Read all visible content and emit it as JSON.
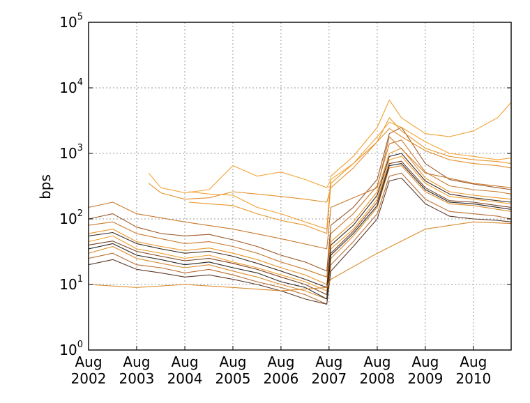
{
  "chart_data": {
    "type": "line",
    "title": "",
    "xlabel": "",
    "ylabel": "bps",
    "yscale": "log",
    "ylim": [
      1,
      100000
    ],
    "xlim": [
      "2002-08-01",
      "2011-05-15"
    ],
    "grid": true,
    "legend": "none",
    "yticks": [
      {
        "value": 1,
        "base": "10",
        "exp": "0"
      },
      {
        "value": 10,
        "base": "10",
        "exp": "1"
      },
      {
        "value": 100,
        "base": "10",
        "exp": "2"
      },
      {
        "value": 1000,
        "base": "10",
        "exp": "3"
      },
      {
        "value": 10000,
        "base": "10",
        "exp": "4"
      },
      {
        "value": 100000,
        "base": "10",
        "exp": "5"
      }
    ],
    "xticks": [
      {
        "date": "2002-08-01",
        "line1": "Aug",
        "line2": "2002"
      },
      {
        "date": "2003-08-01",
        "line1": "Aug",
        "line2": "2003"
      },
      {
        "date": "2004-08-01",
        "line1": "Aug",
        "line2": "2004"
      },
      {
        "date": "2005-08-01",
        "line1": "Aug",
        "line2": "2005"
      },
      {
        "date": "2006-08-01",
        "line1": "Aug",
        "line2": "2006"
      },
      {
        "date": "2007-08-01",
        "line1": "Aug",
        "line2": "2007"
      },
      {
        "date": "2008-08-01",
        "line1": "Aug",
        "line2": "2008"
      },
      {
        "date": "2009-08-01",
        "line1": "Aug",
        "line2": "2009"
      },
      {
        "date": "2010-08-01",
        "line1": "Aug",
        "line2": "2010"
      }
    ],
    "colors": [
      "#f0a030",
      "#e8962a",
      "#d98a2c",
      "#c97a2e",
      "#b86e32",
      "#9c5a2c",
      "#7a4424",
      "#5a3a2a",
      "#3a2c26",
      "#2a2624",
      "#f5a638",
      "#e2902e"
    ],
    "series": [
      {
        "x": [
          "2002-08-01",
          "2003-02-01",
          "2003-08-01",
          "2004-02-01",
          "2004-08-01",
          "2005-02-01",
          "2005-08-01",
          "2006-02-01",
          "2006-08-01",
          "2007-02-01",
          "2007-07-15",
          "2007-08-15",
          "2008-02-01",
          "2008-08-01",
          "2008-11-01",
          "2009-02-01",
          "2009-08-01",
          "2010-02-01",
          "2010-08-01",
          "2011-02-01",
          "2011-05-15"
        ],
        "y": [
          45,
          55,
          35,
          30,
          25,
          28,
          22,
          18,
          14,
          11,
          8,
          35,
          70,
          200,
          800,
          900,
          350,
          220,
          200,
          180,
          170
        ]
      },
      {
        "x": [
          "2002-08-01",
          "2003-02-01",
          "2003-08-01",
          "2004-02-01",
          "2004-08-01",
          "2005-02-01",
          "2005-08-01",
          "2006-02-01",
          "2006-08-01",
          "2007-02-01",
          "2007-07-15",
          "2007-08-15",
          "2008-02-01",
          "2008-08-01",
          "2008-11-01",
          "2009-02-01",
          "2009-08-01",
          "2010-02-01",
          "2010-08-01",
          "2011-02-01",
          "2011-05-15"
        ],
        "y": [
          60,
          70,
          45,
          38,
          33,
          36,
          30,
          24,
          18,
          14,
          10,
          45,
          90,
          260,
          1000,
          1200,
          420,
          260,
          230,
          210,
          200
        ]
      },
      {
        "x": [
          "2002-08-01",
          "2003-02-01",
          "2003-08-01",
          "2004-02-01",
          "2004-08-01",
          "2005-02-01",
          "2005-08-01",
          "2006-02-01",
          "2006-08-01",
          "2007-02-01",
          "2007-07-15",
          "2007-08-15",
          "2008-02-01",
          "2008-08-01",
          "2008-11-01",
          "2009-02-01",
          "2009-08-01",
          "2010-02-01",
          "2010-08-01",
          "2011-02-01",
          "2011-05-15"
        ],
        "y": [
          30,
          38,
          25,
          21,
          18,
          20,
          16,
          13,
          10,
          8,
          6,
          25,
          55,
          150,
          600,
          650,
          260,
          170,
          160,
          140,
          130
        ]
      },
      {
        "x": [
          "2002-08-01",
          "2003-02-01",
          "2003-08-01",
          "2004-02-01",
          "2004-08-01",
          "2005-02-01",
          "2005-08-01",
          "2006-02-01",
          "2006-08-01",
          "2007-02-01",
          "2007-07-15",
          "2007-08-15",
          "2008-02-01",
          "2008-08-01",
          "2008-11-01",
          "2009-02-01",
          "2009-08-01",
          "2010-02-01",
          "2010-08-01",
          "2011-02-01",
          "2011-05-15"
        ],
        "y": [
          80,
          90,
          60,
          50,
          42,
          45,
          38,
          30,
          22,
          17,
          13,
          60,
          120,
          320,
          1400,
          1600,
          520,
          320,
          280,
          260,
          240
        ]
      },
      {
        "x": [
          "2002-08-01",
          "2003-02-01",
          "2003-08-01",
          "2004-02-01",
          "2004-08-01",
          "2005-02-01",
          "2005-08-01",
          "2006-02-01",
          "2006-08-01",
          "2007-02-01",
          "2007-07-15",
          "2007-08-15",
          "2008-02-01",
          "2008-08-01",
          "2008-11-01",
          "2009-02-01",
          "2009-08-01",
          "2010-02-01",
          "2010-08-01",
          "2011-02-01",
          "2011-05-15"
        ],
        "y": [
          25,
          30,
          20,
          18,
          15,
          17,
          14,
          11,
          9,
          7,
          5,
          20,
          45,
          120,
          450,
          500,
          200,
          130,
          120,
          110,
          100
        ]
      },
      {
        "x": [
          "2002-08-01",
          "2003-02-01",
          "2003-08-01",
          "2004-02-01",
          "2004-08-01",
          "2005-02-01",
          "2005-08-01",
          "2006-02-01",
          "2006-08-01",
          "2007-02-01",
          "2007-07-15",
          "2007-08-15",
          "2008-02-01",
          "2008-08-01",
          "2008-11-01",
          "2009-02-01",
          "2009-08-01",
          "2010-02-01",
          "2010-08-01",
          "2011-02-01",
          "2011-05-15"
        ],
        "y": [
          100,
          120,
          75,
          60,
          55,
          58,
          48,
          38,
          28,
          22,
          16,
          80,
          150,
          400,
          2000,
          2500,
          700,
          400,
          340,
          300,
          280
        ]
      },
      {
        "x": [
          "2002-08-01",
          "2003-02-01",
          "2003-08-01",
          "2004-02-01",
          "2004-08-01",
          "2005-02-01",
          "2005-08-01",
          "2006-02-01",
          "2006-08-01",
          "2007-02-01",
          "2007-07-15",
          "2007-08-15",
          "2008-02-01",
          "2008-08-01",
          "2008-11-01",
          "2009-02-01",
          "2009-08-01",
          "2010-02-01",
          "2010-08-01",
          "2011-02-01",
          "2011-05-15"
        ],
        "y": [
          40,
          46,
          32,
          27,
          23,
          25,
          21,
          17,
          13,
          10,
          7,
          30,
          65,
          180,
          700,
          760,
          300,
          190,
          180,
          160,
          150
        ]
      },
      {
        "x": [
          "2002-08-01",
          "2003-02-01",
          "2003-08-01",
          "2004-02-01",
          "2004-08-01",
          "2005-02-01",
          "2005-08-01",
          "2006-02-01",
          "2006-08-01",
          "2007-02-01",
          "2007-07-15",
          "2007-08-15",
          "2008-02-01",
          "2008-08-01",
          "2008-11-01",
          "2009-02-01",
          "2009-08-01",
          "2010-02-01",
          "2010-08-01",
          "2011-02-01",
          "2011-05-15"
        ],
        "y": [
          20,
          24,
          17,
          15,
          13,
          14,
          12,
          10,
          8,
          6,
          5,
          16,
          38,
          100,
          380,
          420,
          170,
          110,
          100,
          95,
          90
        ]
      },
      {
        "x": [
          "2002-08-01",
          "2003-02-01",
          "2003-08-01",
          "2004-02-01",
          "2004-08-01",
          "2005-02-01",
          "2005-08-01",
          "2006-02-01",
          "2006-08-01",
          "2007-02-01",
          "2007-07-15",
          "2007-08-15",
          "2008-02-01",
          "2008-08-01",
          "2008-11-01",
          "2009-02-01",
          "2009-08-01",
          "2010-02-01",
          "2010-08-01",
          "2011-02-01",
          "2011-05-15"
        ],
        "y": [
          55,
          62,
          42,
          35,
          30,
          32,
          27,
          21,
          16,
          12,
          9,
          40,
          80,
          230,
          900,
          1000,
          380,
          240,
          210,
          190,
          180
        ]
      },
      {
        "x": [
          "2002-08-01",
          "2003-02-01",
          "2003-08-01",
          "2004-02-01",
          "2004-08-01",
          "2005-02-01",
          "2005-08-01",
          "2006-02-01",
          "2006-08-01",
          "2007-02-01",
          "2007-07-15",
          "2007-08-15",
          "2008-02-01",
          "2008-08-01",
          "2008-11-01",
          "2009-02-01",
          "2009-08-01",
          "2010-02-01",
          "2010-08-01",
          "2011-02-01",
          "2011-05-15"
        ],
        "y": [
          35,
          42,
          28,
          24,
          20,
          22,
          18,
          15,
          11,
          9,
          6,
          28,
          60,
          160,
          650,
          700,
          280,
          180,
          170,
          150,
          140
        ]
      },
      {
        "x": [
          "2003-11-01",
          "2004-02-01",
          "2004-08-01",
          "2005-02-01",
          "2005-08-01",
          "2006-02-01",
          "2006-08-01",
          "2007-02-01",
          "2007-07-15",
          "2007-08-15",
          "2008-02-01",
          "2008-08-01",
          "2008-11-01",
          "2009-02-01",
          "2009-08-01",
          "2010-02-01",
          "2010-08-01",
          "2011-02-01",
          "2011-05-15"
        ],
        "y": [
          500,
          300,
          250,
          280,
          650,
          450,
          520,
          400,
          300,
          400,
          700,
          1800,
          3000,
          2500,
          1500,
          1000,
          900,
          800,
          850
        ]
      },
      {
        "x": [
          "2003-11-01",
          "2004-02-01",
          "2004-08-01",
          "2005-02-01",
          "2005-08-01",
          "2006-02-01",
          "2006-08-01",
          "2007-02-01",
          "2007-07-15",
          "2007-08-15",
          "2008-02-01",
          "2008-08-01",
          "2008-11-01",
          "2009-02-01",
          "2009-08-01",
          "2010-02-01",
          "2010-08-01",
          "2011-02-01",
          "2011-05-15"
        ],
        "y": [
          350,
          250,
          200,
          210,
          260,
          240,
          220,
          200,
          180,
          300,
          600,
          1500,
          2400,
          1800,
          1100,
          800,
          700,
          650,
          600
        ]
      },
      {
        "x": [
          "2004-09-01",
          "2005-02-01",
          "2005-08-01",
          "2006-02-01",
          "2006-08-01",
          "2007-02-01",
          "2007-07-15",
          "2007-08-15",
          "2008-02-01",
          "2008-08-01",
          "2008-11-01",
          "2009-02-01",
          "2009-08-01",
          "2010-02-01",
          "2010-08-01",
          "2011-02-01",
          "2011-05-15"
        ],
        "y": [
          260,
          240,
          230,
          150,
          120,
          90,
          70,
          450,
          900,
          2500,
          6500,
          3500,
          2000,
          1800,
          2200,
          3500,
          6000
        ]
      },
      {
        "x": [
          "2004-09-01",
          "2005-02-01",
          "2005-08-01",
          "2006-02-01",
          "2006-08-01",
          "2007-02-01",
          "2007-07-15",
          "2007-08-15",
          "2008-02-01",
          "2008-08-01",
          "2008-11-01",
          "2009-02-01",
          "2009-08-01",
          "2010-02-01",
          "2010-08-01",
          "2011-02-01",
          "2011-05-15"
        ],
        "y": [
          180,
          170,
          160,
          120,
          95,
          80,
          60,
          350,
          700,
          1500,
          3500,
          2200,
          1200,
          900,
          800,
          750,
          700
        ]
      },
      {
        "x": [
          "2002-08-01",
          "2003-08-01",
          "2004-08-01",
          "2005-08-01",
          "2006-08-01",
          "2007-07-15",
          "2007-08-15",
          "2008-08-01",
          "2009-08-01",
          "2010-08-01",
          "2011-05-15"
        ],
        "y": [
          10,
          9,
          10,
          9,
          8,
          9,
          12,
          30,
          70,
          90,
          85
        ]
      },
      {
        "x": [
          "2002-08-01",
          "2003-02-01",
          "2003-08-01",
          "2004-08-01",
          "2005-08-01",
          "2006-08-01",
          "2007-07-15",
          "2007-08-15",
          "2008-08-01",
          "2008-11-01",
          "2009-08-01",
          "2010-08-01",
          "2011-05-15"
        ],
        "y": [
          150,
          180,
          120,
          90,
          70,
          50,
          35,
          150,
          300,
          1800,
          500,
          350,
          300
        ]
      }
    ]
  }
}
